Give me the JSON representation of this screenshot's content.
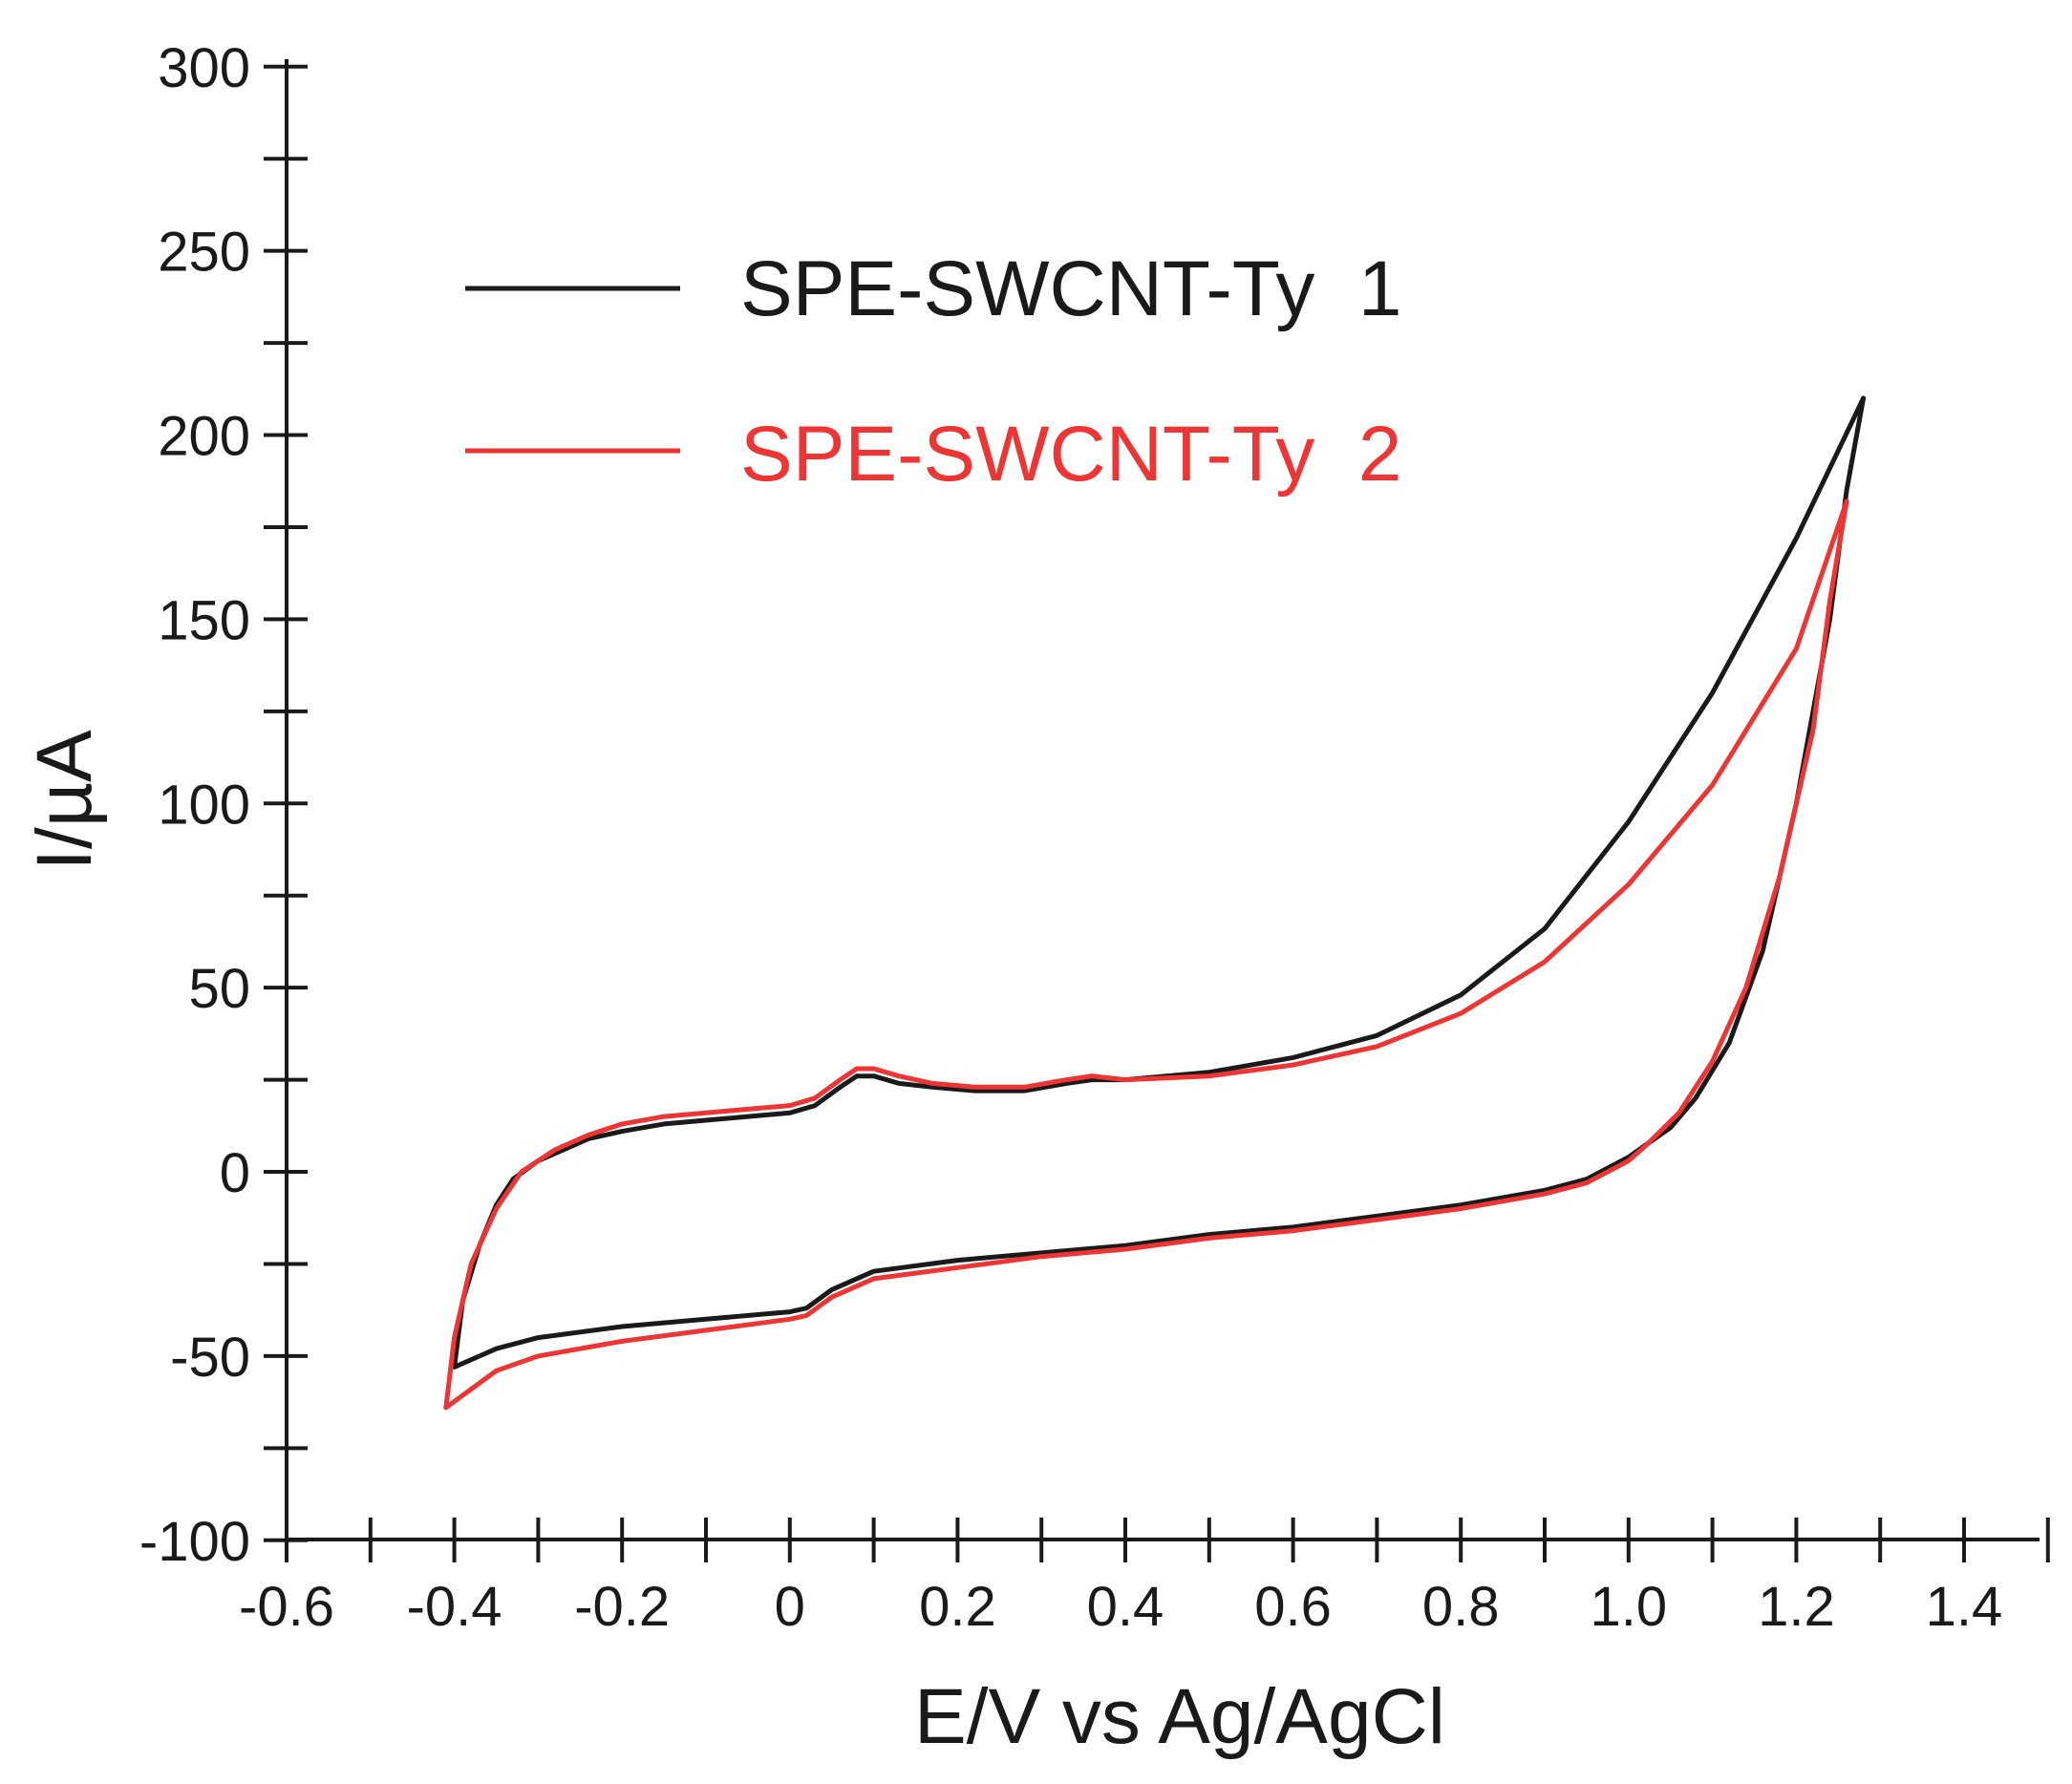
{
  "chart_data": {
    "type": "line",
    "title": "",
    "xlabel": "E/V vs Ag/AgCl",
    "ylabel": "I/µA",
    "xlim": [
      -0.6,
      1.5
    ],
    "ylim": [
      -100,
      300
    ],
    "x_ticks": [
      -0.6,
      -0.4,
      -0.2,
      0,
      0.2,
      0.4,
      0.6,
      0.8,
      1.0,
      1.2,
      1.4
    ],
    "x_tick_labels": [
      "-0.6",
      "-0.4",
      "-0.2",
      "0",
      "0.2",
      "0.4",
      "0.6",
      "0.8",
      "1.0",
      "1.2",
      "1.4"
    ],
    "y_ticks": [
      -100,
      -50,
      0,
      50,
      100,
      150,
      200,
      250,
      300
    ],
    "y_tick_labels": [
      "-100",
      "-50",
      "0",
      "50",
      "100",
      "150",
      "200",
      "250",
      "300"
    ],
    "grid": false,
    "legend_position": "top-left",
    "series": [
      {
        "name": "SPE-SWCNT-Ty  1",
        "color": "#1a1a1a",
        "points": [
          [
            -0.4,
            -53
          ],
          [
            -0.39,
            -35
          ],
          [
            -0.37,
            -20
          ],
          [
            -0.35,
            -9
          ],
          [
            -0.33,
            -2
          ],
          [
            -0.3,
            3
          ],
          [
            -0.27,
            6
          ],
          [
            -0.24,
            9
          ],
          [
            -0.2,
            11
          ],
          [
            -0.15,
            13
          ],
          [
            -0.1,
            14
          ],
          [
            -0.05,
            15
          ],
          [
            0.0,
            16
          ],
          [
            0.03,
            18
          ],
          [
            0.06,
            23
          ],
          [
            0.08,
            26
          ],
          [
            0.1,
            26
          ],
          [
            0.13,
            24
          ],
          [
            0.17,
            23
          ],
          [
            0.22,
            22
          ],
          [
            0.28,
            22
          ],
          [
            0.33,
            24
          ],
          [
            0.36,
            25
          ],
          [
            0.4,
            25
          ],
          [
            0.5,
            27
          ],
          [
            0.6,
            31
          ],
          [
            0.7,
            37
          ],
          [
            0.8,
            48
          ],
          [
            0.9,
            66
          ],
          [
            1.0,
            95
          ],
          [
            1.1,
            130
          ],
          [
            1.2,
            172
          ],
          [
            1.28,
            210
          ],
          [
            1.26,
            185
          ],
          [
            1.24,
            150
          ],
          [
            1.2,
            100
          ],
          [
            1.16,
            60
          ],
          [
            1.12,
            35
          ],
          [
            1.08,
            20
          ],
          [
            1.05,
            12
          ],
          [
            1.0,
            4
          ],
          [
            0.95,
            -2
          ],
          [
            0.9,
            -5
          ],
          [
            0.8,
            -9
          ],
          [
            0.7,
            -12
          ],
          [
            0.6,
            -15
          ],
          [
            0.5,
            -17
          ],
          [
            0.4,
            -20
          ],
          [
            0.3,
            -22
          ],
          [
            0.2,
            -24
          ],
          [
            0.1,
            -27
          ],
          [
            0.05,
            -32
          ],
          [
            0.02,
            -37
          ],
          [
            0.0,
            -38
          ],
          [
            -0.1,
            -40
          ],
          [
            -0.2,
            -42
          ],
          [
            -0.3,
            -45
          ],
          [
            -0.35,
            -48
          ],
          [
            -0.4,
            -53
          ]
        ]
      },
      {
        "name": "SPE-SWCNT-Ty  2",
        "color": "#ef3434",
        "points": [
          [
            -0.41,
            -64
          ],
          [
            -0.4,
            -45
          ],
          [
            -0.38,
            -25
          ],
          [
            -0.35,
            -10
          ],
          [
            -0.32,
            0
          ],
          [
            -0.28,
            6
          ],
          [
            -0.24,
            10
          ],
          [
            -0.2,
            13
          ],
          [
            -0.15,
            15
          ],
          [
            -0.1,
            16
          ],
          [
            -0.05,
            17
          ],
          [
            0.0,
            18
          ],
          [
            0.03,
            20
          ],
          [
            0.06,
            25
          ],
          [
            0.08,
            28
          ],
          [
            0.1,
            28
          ],
          [
            0.13,
            26
          ],
          [
            0.17,
            24
          ],
          [
            0.22,
            23
          ],
          [
            0.28,
            23
          ],
          [
            0.33,
            25
          ],
          [
            0.36,
            26
          ],
          [
            0.4,
            25
          ],
          [
            0.5,
            26
          ],
          [
            0.6,
            29
          ],
          [
            0.7,
            34
          ],
          [
            0.8,
            43
          ],
          [
            0.9,
            57
          ],
          [
            1.0,
            78
          ],
          [
            1.1,
            105
          ],
          [
            1.2,
            142
          ],
          [
            1.26,
            182
          ],
          [
            1.24,
            155
          ],
          [
            1.22,
            120
          ],
          [
            1.18,
            80
          ],
          [
            1.14,
            50
          ],
          [
            1.1,
            30
          ],
          [
            1.06,
            16
          ],
          [
            1.02,
            7
          ],
          [
            1.0,
            3
          ],
          [
            0.95,
            -3
          ],
          [
            0.9,
            -6
          ],
          [
            0.8,
            -10
          ],
          [
            0.7,
            -13
          ],
          [
            0.6,
            -16
          ],
          [
            0.5,
            -18
          ],
          [
            0.4,
            -21
          ],
          [
            0.3,
            -23
          ],
          [
            0.2,
            -26
          ],
          [
            0.1,
            -29
          ],
          [
            0.05,
            -34
          ],
          [
            0.02,
            -39
          ],
          [
            0.0,
            -40
          ],
          [
            -0.1,
            -43
          ],
          [
            -0.2,
            -46
          ],
          [
            -0.3,
            -50
          ],
          [
            -0.35,
            -54
          ],
          [
            -0.41,
            -64
          ]
        ]
      }
    ]
  }
}
